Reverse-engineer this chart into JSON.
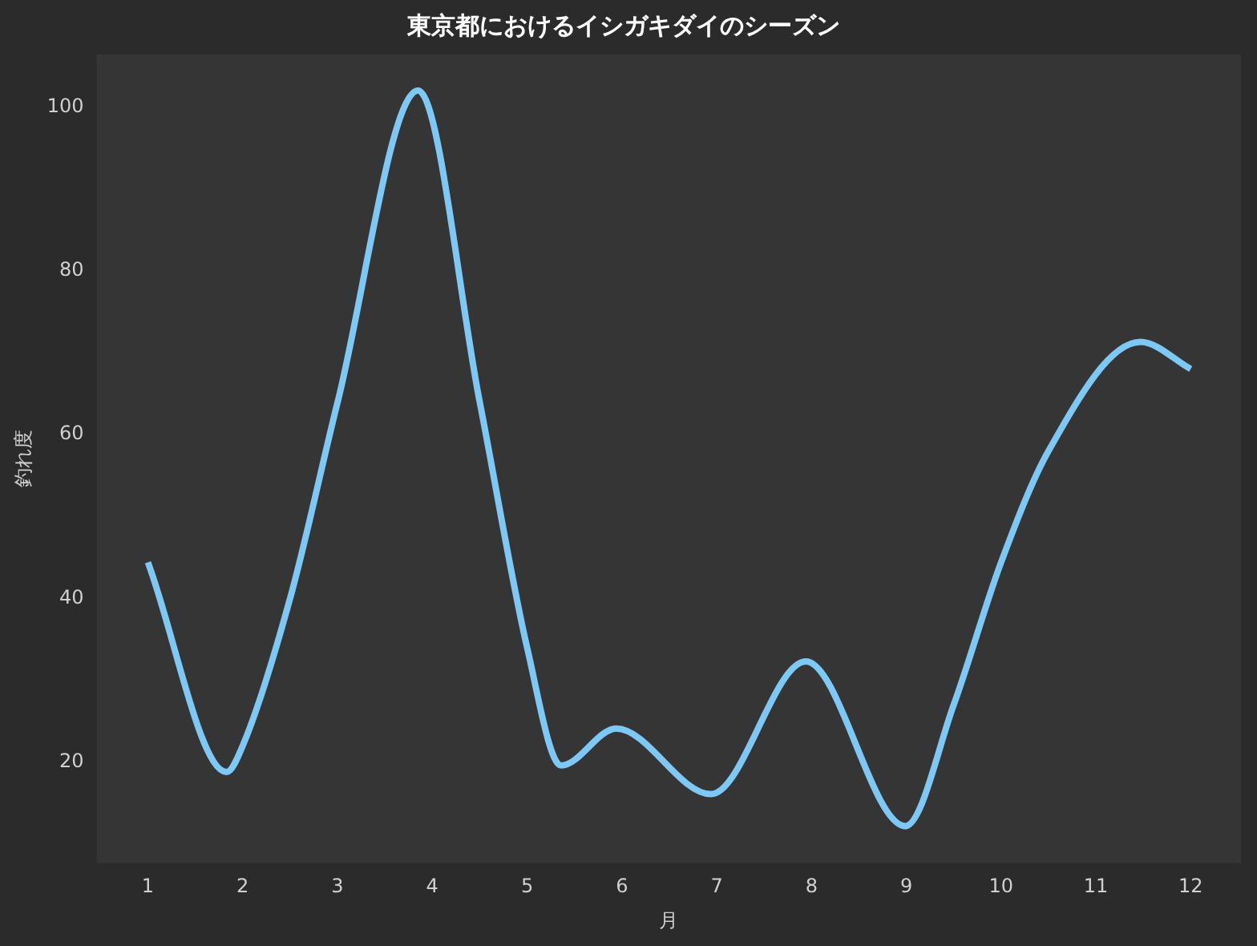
{
  "chart_data": {
    "type": "line",
    "title": "東京都におけるイシガキダイのシーズン",
    "xlabel": "月",
    "ylabel": "釣れ度",
    "x": [
      1,
      1.83,
      2,
      2.5,
      3,
      3.85,
      4.5,
      5,
      5.36,
      5.94,
      6.94,
      7.94,
      8.99,
      9.5,
      10,
      10.5,
      11.47,
      12
    ],
    "series": [
      {
        "color": "#7ec8f5",
        "values": [
          44.4,
          18.8,
          22,
          40,
          63.9,
          102,
          64,
          34,
          19.6,
          24.1,
          16.1,
          32.3,
          12.2,
          27,
          44.4,
          58,
          71.3,
          68
        ]
      }
    ],
    "xlim": [
      0.46,
      12.53
    ],
    "xticks": [
      1,
      2,
      3,
      4,
      5,
      6,
      7,
      8,
      9,
      10,
      11,
      12
    ],
    "ylim": [
      7.7,
      106.4
    ],
    "yticks": [
      20,
      40,
      60,
      80,
      100
    ],
    "grid": false,
    "legend": false,
    "marker": "none",
    "line_style": "solid"
  }
}
